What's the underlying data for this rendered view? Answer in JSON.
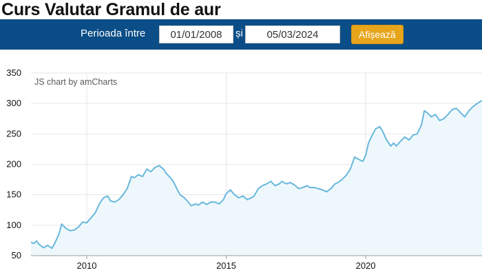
{
  "page": {
    "title": "Curs Valutar Gramul de aur"
  },
  "filter": {
    "period_label": "Perioada între",
    "start_date": "01/01/2008",
    "and_label": "și",
    "end_date": "05/03/2024",
    "submit_label": "Afișează"
  },
  "colors": {
    "bar_background": "#0b4d86",
    "button": "#e7a51c",
    "line": "#67b7dc",
    "fill": "#eef8fc"
  },
  "chart_data": {
    "type": "area",
    "credit": "JS chart by amCharts",
    "title": "",
    "xlabel": "",
    "ylabel": "",
    "ylim": [
      50,
      350
    ],
    "xlim": [
      2008.0,
      2024.17
    ],
    "yticks": [
      "50",
      "100",
      "150",
      "200",
      "250",
      "300",
      "350"
    ],
    "xticks": [
      "2010",
      "2015",
      "2020"
    ],
    "grid": true,
    "series": [
      {
        "x": [
          2008.0,
          2008.1,
          2008.2,
          2008.3,
          2008.45,
          2008.6,
          2008.75,
          2008.85,
          2009.0,
          2009.1,
          2009.25,
          2009.4,
          2009.55,
          2009.7,
          2009.85,
          2010.0,
          2010.15,
          2010.3,
          2010.45,
          2010.6,
          2010.75,
          2010.85,
          2011.0,
          2011.15,
          2011.3,
          2011.45,
          2011.6,
          2011.7,
          2011.85,
          2012.0,
          2012.15,
          2012.3,
          2012.45,
          2012.6,
          2012.75,
          2012.85,
          2013.0,
          2013.1,
          2013.25,
          2013.35,
          2013.5,
          2013.6,
          2013.75,
          2013.9,
          2014.0,
          2014.15,
          2014.3,
          2014.45,
          2014.6,
          2014.75,
          2014.9,
          2015.0,
          2015.15,
          2015.3,
          2015.45,
          2015.6,
          2015.75,
          2015.9,
          2016.0,
          2016.15,
          2016.3,
          2016.45,
          2016.6,
          2016.75,
          2016.9,
          2017.0,
          2017.15,
          2017.3,
          2017.45,
          2017.6,
          2017.75,
          2017.9,
          2018.0,
          2018.15,
          2018.3,
          2018.45,
          2018.6,
          2018.75,
          2018.9,
          2019.0,
          2019.15,
          2019.3,
          2019.45,
          2019.6,
          2019.75,
          2019.9,
          2020.0,
          2020.1,
          2020.2,
          2020.35,
          2020.5,
          2020.6,
          2020.75,
          2020.9,
          2021.0,
          2021.1,
          2021.25,
          2021.4,
          2021.55,
          2021.7,
          2021.85,
          2022.0,
          2022.1,
          2022.2,
          2022.35,
          2022.5,
          2022.65,
          2022.8,
          2022.95,
          2023.1,
          2023.25,
          2023.4,
          2023.55,
          2023.7,
          2023.85,
          2024.0,
          2024.17
        ],
        "values": [
          72,
          70,
          74,
          68,
          63,
          67,
          62,
          70,
          85,
          102,
          95,
          91,
          92,
          97,
          105,
          104,
          112,
          120,
          135,
          145,
          148,
          140,
          138,
          142,
          150,
          160,
          180,
          178,
          183,
          180,
          192,
          188,
          195,
          198,
          192,
          185,
          178,
          172,
          158,
          150,
          145,
          140,
          132,
          135,
          133,
          138,
          134,
          138,
          138,
          135,
          142,
          152,
          158,
          150,
          145,
          148,
          142,
          145,
          148,
          160,
          165,
          168,
          172,
          165,
          168,
          172,
          168,
          170,
          166,
          160,
          162,
          165,
          162,
          162,
          160,
          158,
          155,
          160,
          168,
          170,
          175,
          182,
          192,
          212,
          208,
          205,
          215,
          235,
          245,
          258,
          262,
          255,
          240,
          230,
          235,
          230,
          238,
          245,
          240,
          248,
          250,
          265,
          288,
          285,
          278,
          282,
          272,
          275,
          282,
          290,
          292,
          285,
          278,
          288,
          295,
          300,
          305
        ]
      }
    ]
  }
}
